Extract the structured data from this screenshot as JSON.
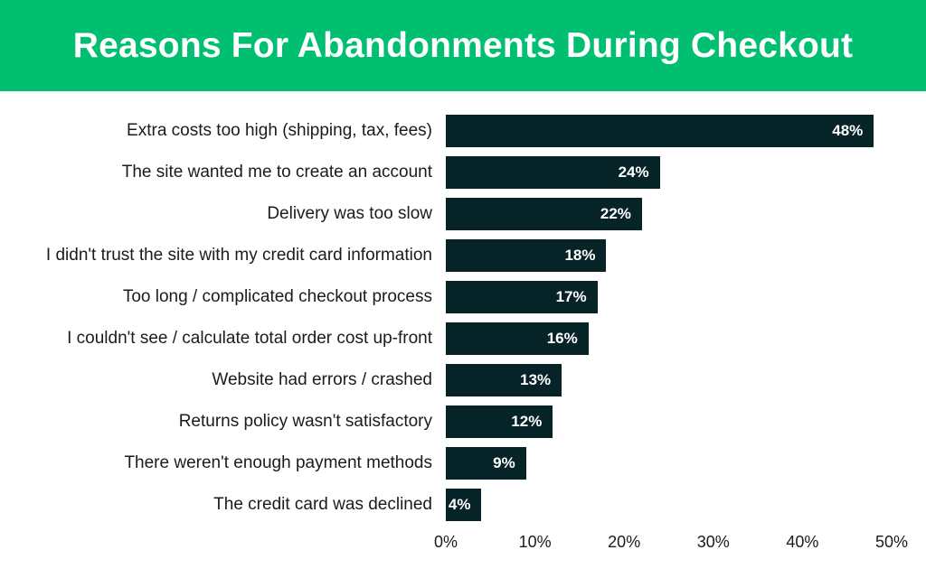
{
  "header": {
    "title": "Reasons For Abandonments During Checkout"
  },
  "colors": {
    "header_bg": "#00bf71",
    "bar": "#062328",
    "value_text": "#ffffff"
  },
  "chart_data": {
    "type": "bar",
    "orientation": "horizontal",
    "title": "Reasons For Abandonments During Checkout",
    "categories": [
      "Extra costs too high (shipping, tax, fees)",
      "The site wanted me to create an account",
      "Delivery was too slow",
      "I didn't trust the site with my credit card information",
      "Too long / complicated checkout process",
      "I couldn't see / calculate total order cost up-front",
      "Website had errors / crashed",
      "Returns policy wasn't satisfactory",
      "There weren't enough payment methods",
      "The credit card was declined"
    ],
    "values": [
      48,
      24,
      22,
      18,
      17,
      16,
      13,
      12,
      9,
      4
    ],
    "value_labels": [
      "48%",
      "24%",
      "22%",
      "18%",
      "17%",
      "16%",
      "13%",
      "12%",
      "9%",
      "4%"
    ],
    "xlim": [
      0,
      50
    ],
    "x_ticks": [
      0,
      10,
      20,
      30,
      40,
      50
    ],
    "x_tick_labels": [
      "0%",
      "10%",
      "20%",
      "30%",
      "40%",
      "50%"
    ],
    "xlabel": "",
    "ylabel": "",
    "grid": false,
    "legend": "none"
  }
}
